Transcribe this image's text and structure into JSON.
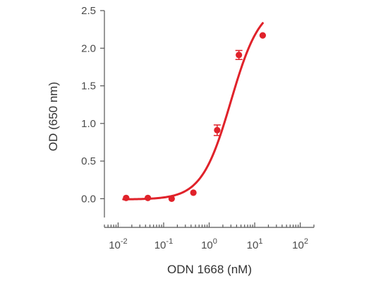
{
  "chart_data": {
    "type": "scatter",
    "xlabel": "ODN 1668 (nM)",
    "ylabel": "OD (650 nm)",
    "x_scale": "log",
    "xlim": [
      0.005,
      200
    ],
    "ylim": [
      -0.25,
      2.5
    ],
    "x_ticks": [
      {
        "base": "10",
        "exp": "-2",
        "value": 0.01
      },
      {
        "base": "10",
        "exp": "-1",
        "value": 0.1
      },
      {
        "base": "10",
        "exp": "0",
        "value": 1
      },
      {
        "base": "10",
        "exp": "1",
        "value": 10
      },
      {
        "base": "10",
        "exp": "2",
        "value": 100
      }
    ],
    "y_ticks": [
      "0.0",
      "0.5",
      "1.0",
      "1.5",
      "2.0",
      "2.5"
    ],
    "grid": false,
    "color": "#e0222a",
    "points": [
      {
        "x": 0.015,
        "y": 0.01,
        "err": 0
      },
      {
        "x": 0.045,
        "y": 0.01,
        "err": 0
      },
      {
        "x": 0.15,
        "y": 0.0,
        "err": 0
      },
      {
        "x": 0.45,
        "y": 0.08,
        "err": 0
      },
      {
        "x": 1.5,
        "y": 0.91,
        "err": 0.07
      },
      {
        "x": 4.5,
        "y": 1.91,
        "err": 0.06
      },
      {
        "x": 15,
        "y": 2.17,
        "err": 0
      }
    ],
    "fit": {
      "bottom": -0.01,
      "top": 2.6,
      "ec50": 3.0,
      "hill": 1.35,
      "x_start": 0.013,
      "x_end": 15
    }
  }
}
